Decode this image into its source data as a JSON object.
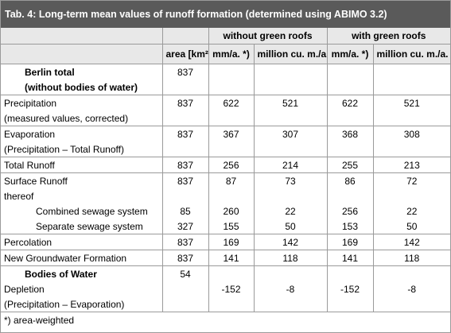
{
  "title": "Tab. 4: Long-term mean values of runoff formation (determined using ABIMO 3.2)",
  "groups": {
    "without": "without green roofs",
    "with": "with green roofs"
  },
  "columns": [
    "",
    "area [km²]",
    "mm/a. *)",
    "million cu. m./a.",
    "mm/a. *)",
    "million cu. m./a."
  ],
  "rows": [
    {
      "label": "Berlin total",
      "area": "837",
      "v1": "",
      "v2": "",
      "v3": "",
      "v4": ""
    },
    {
      "label": "(without bodies of water)",
      "area": "",
      "v1": "",
      "v2": "",
      "v3": "",
      "v4": ""
    },
    {
      "label": "Precipitation",
      "area": "837",
      "v1": "622",
      "v2": "521",
      "v3": "622",
      "v4": "521"
    },
    {
      "label": "(measured values, corrected)",
      "area": "",
      "v1": "",
      "v2": "",
      "v3": "",
      "v4": ""
    },
    {
      "label": "Evaporation",
      "area": "837",
      "v1": "367",
      "v2": "307",
      "v3": "368",
      "v4": "308"
    },
    {
      "label": "(Precipitation – Total Runoff)",
      "area": "",
      "v1": "",
      "v2": "",
      "v3": "",
      "v4": ""
    },
    {
      "label": "Total Runoff",
      "area": "837",
      "v1": "256",
      "v2": "214",
      "v3": "255",
      "v4": "213"
    },
    {
      "label": "Surface Runoff",
      "area": "837",
      "v1": "87",
      "v2": "73",
      "v3": "86",
      "v4": "72"
    },
    {
      "label": "thereof",
      "area": "",
      "v1": "",
      "v2": "",
      "v3": "",
      "v4": ""
    },
    {
      "label": "Combined sewage system",
      "area": "85",
      "v1": "260",
      "v2": "22",
      "v3": "256",
      "v4": "22"
    },
    {
      "label": "Separate sewage system",
      "area": "327",
      "v1": "155",
      "v2": "50",
      "v3": "153",
      "v4": "50"
    },
    {
      "label": "Percolation",
      "area": "837",
      "v1": "169",
      "v2": "142",
      "v3": "169",
      "v4": "142"
    },
    {
      "label": "New Groundwater Formation",
      "area": "837",
      "v1": "141",
      "v2": "118",
      "v3": "141",
      "v4": "118"
    },
    {
      "label": "Bodies of  Water",
      "area": "54",
      "v1": "",
      "v2": "",
      "v3": "",
      "v4": ""
    },
    {
      "label": "Depletion",
      "area": "",
      "v1": "-152",
      "v2": "-8",
      "v3": "-152",
      "v4": "-8"
    },
    {
      "label": "(Precipitation – Evaporation)",
      "area": "",
      "v1": "",
      "v2": "",
      "v3": "",
      "v4": ""
    }
  ],
  "footnote": "*) area-weighted"
}
